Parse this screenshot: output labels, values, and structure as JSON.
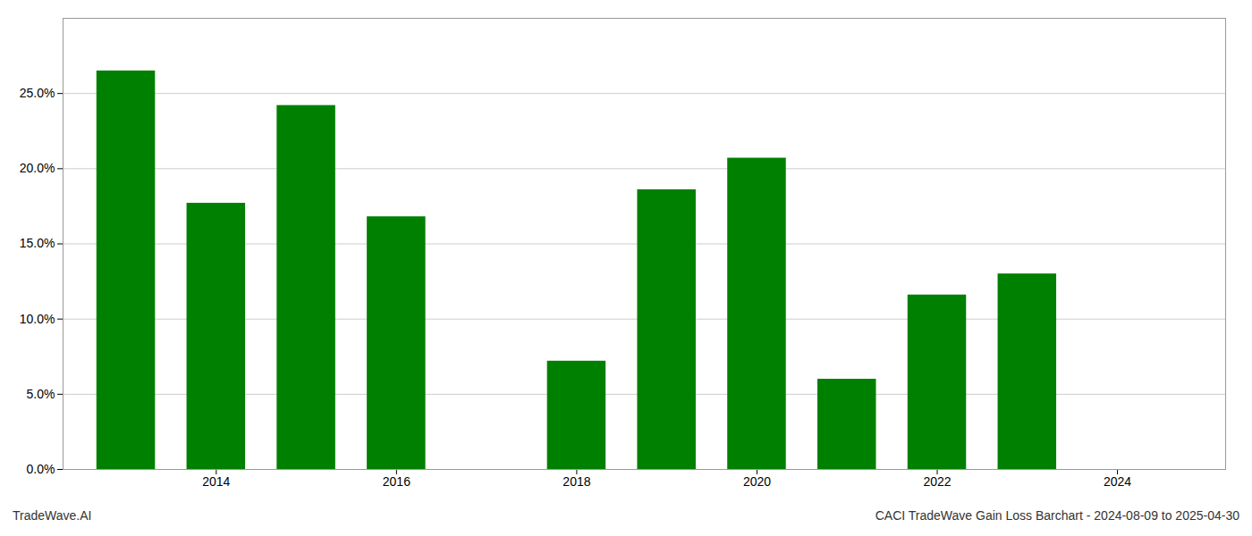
{
  "chart_data": {
    "type": "bar",
    "x": [
      2013,
      2014,
      2015,
      2016,
      2018,
      2019,
      2020,
      2021,
      2022,
      2023
    ],
    "values": [
      0.265,
      0.177,
      0.242,
      0.168,
      0.072,
      0.186,
      0.207,
      0.06,
      0.116,
      0.13
    ],
    "color": "#008000",
    "xlim": [
      2012.3,
      2025.2
    ],
    "xticks": [
      2014,
      2016,
      2018,
      2020,
      2022,
      2024
    ],
    "ylim": [
      0,
      0.3
    ],
    "yticks": [
      {
        "value": 0.0,
        "label": "0.0%"
      },
      {
        "value": 0.05,
        "label": "5.0%"
      },
      {
        "value": 0.1,
        "label": "10.0%"
      },
      {
        "value": 0.15,
        "label": "15.0%"
      },
      {
        "value": 0.2,
        "label": "20.0%"
      },
      {
        "value": 0.25,
        "label": "25.0%"
      }
    ],
    "grid": true,
    "annotations": [
      "TradeWave.AI",
      "CACI TradeWave Gain Loss Barchart - 2024-08-09 to 2025-04-30"
    ]
  }
}
